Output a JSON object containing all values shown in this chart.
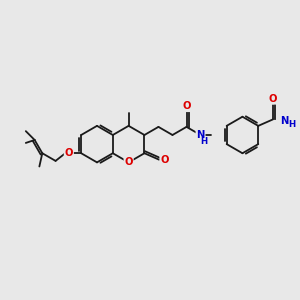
{
  "bg_color": "#e8e8e8",
  "bond_color": "#1a1a1a",
  "O_color": "#dd0000",
  "N_color": "#0000cc",
  "figsize": [
    3.0,
    3.0
  ],
  "dpi": 100,
  "bond_lw": 1.3,
  "font_size": 7.2,
  "xlim": [
    0,
    10
  ],
  "ylim": [
    0,
    10
  ]
}
